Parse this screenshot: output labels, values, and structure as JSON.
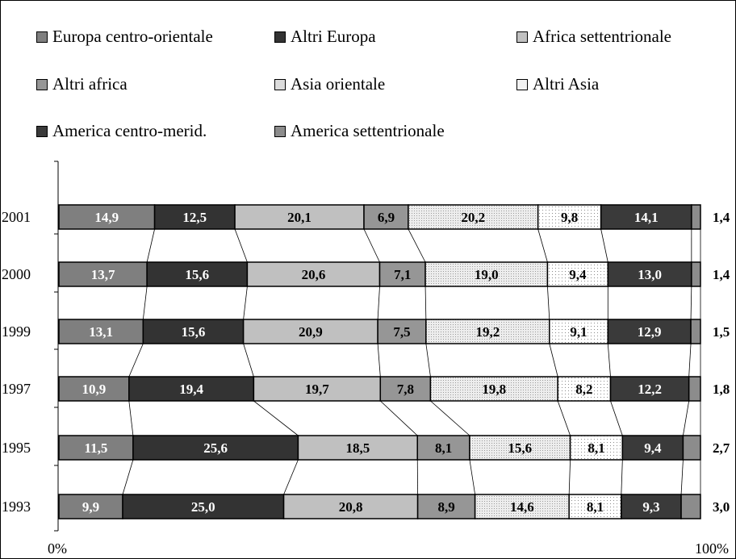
{
  "chart_data": {
    "type": "bar",
    "orientation": "horizontal",
    "stacked": "100%",
    "categories": [
      "2001",
      "2000",
      "1999",
      "1997",
      "1995",
      "1993"
    ],
    "series": [
      {
        "name": "Europa centro-orientale",
        "color": "#7f7f7f",
        "values": [
          14.9,
          13.7,
          13.1,
          10.9,
          11.5,
          9.9
        ]
      },
      {
        "name": "Altri Europa",
        "color": "#333333",
        "values": [
          12.5,
          15.6,
          15.6,
          19.4,
          25.6,
          25.0
        ]
      },
      {
        "name": "Africa settentrionale",
        "color": "#c0c0c0",
        "values": [
          20.1,
          20.6,
          20.9,
          19.7,
          18.5,
          20.8
        ]
      },
      {
        "name": "Altri africa",
        "color": "#969696",
        "values": [
          6.9,
          7.1,
          7.5,
          7.8,
          8.1,
          8.9
        ]
      },
      {
        "name": "Asia orientale",
        "color": "#dcdcdc",
        "values": [
          20.2,
          19.0,
          19.2,
          19.8,
          15.6,
          14.6
        ]
      },
      {
        "name": "Altri Asia",
        "color": "#f2f2f2",
        "values": [
          9.8,
          9.4,
          9.1,
          8.2,
          8.1,
          8.1
        ]
      },
      {
        "name": "America centro-merid.",
        "color": "#3a3a3a",
        "values": [
          14.1,
          13.0,
          12.9,
          12.2,
          9.4,
          9.3
        ]
      },
      {
        "name": "America settentrionale",
        "color": "#8c8c8c",
        "values": [
          1.4,
          1.4,
          1.5,
          1.8,
          2.7,
          3.0
        ]
      }
    ],
    "value_labels": [
      [
        "14,9",
        "12,5",
        "20,1",
        "6,9",
        "20,2",
        "9,8",
        "14,1",
        "1,4"
      ],
      [
        "13,7",
        "15,6",
        "20,6",
        "7,1",
        "19,0",
        "9,4",
        "13,0",
        "1,4"
      ],
      [
        "13,1",
        "15,6",
        "20,9",
        "7,5",
        "19,2",
        "9,1",
        "12,9",
        "1,5"
      ],
      [
        "10,9",
        "19,4",
        "19,7",
        "7,8",
        "19,8",
        "8,2",
        "12,2",
        "1,8"
      ],
      [
        "11,5",
        "25,6",
        "18,5",
        "8,1",
        "15,6",
        "8,1",
        "9,4",
        "2,7"
      ],
      [
        "9,9",
        "25,0",
        "20,8",
        "8,9",
        "14,6",
        "8,1",
        "9,3",
        "3,0"
      ]
    ],
    "x_ticks": [
      "0%",
      "100%"
    ],
    "xlim": [
      0,
      100
    ],
    "legend_position": "top",
    "series_lines": true
  }
}
